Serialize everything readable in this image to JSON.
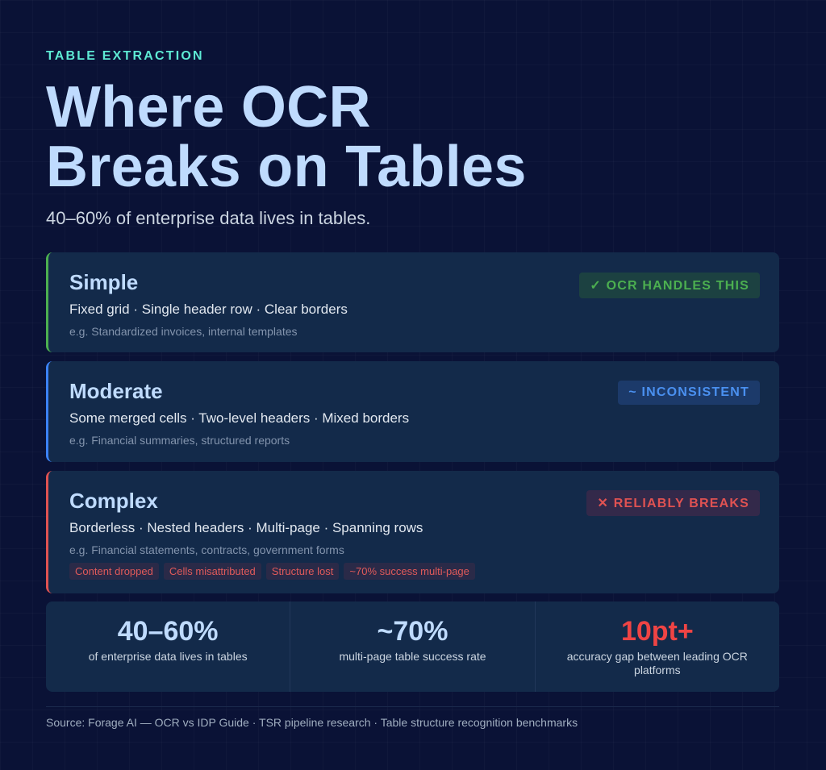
{
  "eyebrow": "TABLE EXTRACTION",
  "title_line1": "Where OCR",
  "title_line2": "Breaks on Tables",
  "subtitle": "40–60% of enterprise data lives in tables.",
  "colors": {
    "simple": "#4caf50",
    "moderate": "#3b82f6",
    "complex": "#e05252",
    "accent": "#5eead4"
  },
  "cards": [
    {
      "title": "Simple",
      "features": "Fixed grid · Single header row · Clear borders",
      "example": "e.g. Standardized invoices, internal templates",
      "badge": "✓ OCR HANDLES THIS",
      "badge_icon": "check-icon"
    },
    {
      "title": "Moderate",
      "features": "Some merged cells · Two-level headers · Mixed borders",
      "example": "e.g. Financial summaries, structured reports",
      "badge": "~ INCONSISTENT",
      "badge_icon": "tilde-icon"
    },
    {
      "title": "Complex",
      "features": "Borderless · Nested headers · Multi-page · Spanning rows",
      "example": "e.g. Financial statements, contracts, government forms",
      "badge": "✕ RELIABLY BREAKS",
      "badge_icon": "x-icon",
      "tags": [
        "Content dropped",
        "Cells misattributed",
        "Structure lost",
        "~70% success multi-page"
      ]
    }
  ],
  "stats": [
    {
      "value": "40–60%",
      "label": "of enterprise data lives in tables"
    },
    {
      "value": "~70%",
      "label": "multi-page table success rate"
    },
    {
      "value": "10pt+",
      "label": "accuracy gap between leading OCR platforms"
    }
  ],
  "footer": "Source: Forage AI — OCR vs IDP Guide · TSR pipeline research · Table structure recognition benchmarks"
}
